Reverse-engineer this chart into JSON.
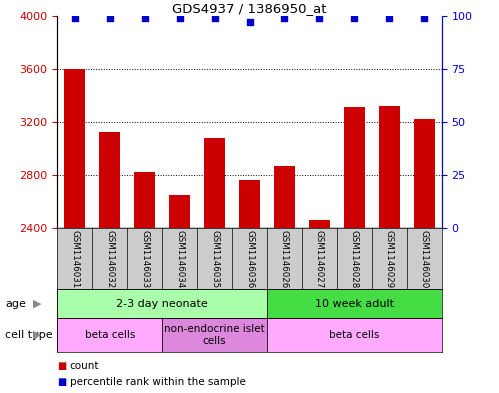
{
  "title": "GDS4937 / 1386950_at",
  "samples": [
    "GSM1146031",
    "GSM1146032",
    "GSM1146033",
    "GSM1146034",
    "GSM1146035",
    "GSM1146036",
    "GSM1146026",
    "GSM1146027",
    "GSM1146028",
    "GSM1146029",
    "GSM1146030"
  ],
  "counts": [
    3600,
    3120,
    2820,
    2650,
    3080,
    2760,
    2870,
    2460,
    3310,
    3320,
    3220
  ],
  "percentiles": [
    99,
    99,
    99,
    99,
    99,
    97,
    99,
    99,
    99,
    99,
    99
  ],
  "ylim_left": [
    2400,
    4000
  ],
  "ylim_right": [
    0,
    100
  ],
  "yticks_left": [
    2400,
    2800,
    3200,
    3600,
    4000
  ],
  "yticks_right": [
    0,
    25,
    50,
    75,
    100
  ],
  "bar_color": "#cc0000",
  "dot_color": "#0000cc",
  "bar_width": 0.6,
  "age_groups": [
    {
      "label": "2-3 day neonate",
      "start": 0,
      "end": 6,
      "color": "#aaffaa"
    },
    {
      "label": "10 week adult",
      "start": 6,
      "end": 11,
      "color": "#44dd44"
    }
  ],
  "cell_type_groups": [
    {
      "label": "beta cells",
      "start": 0,
      "end": 3,
      "color": "#ffaaff"
    },
    {
      "label": "non-endocrine islet\ncells",
      "start": 3,
      "end": 6,
      "color": "#dd88dd"
    },
    {
      "label": "beta cells",
      "start": 6,
      "end": 11,
      "color": "#ffaaff"
    }
  ],
  "age_label": "age",
  "cell_type_label": "cell type",
  "legend_count_label": "count",
  "legend_pct_label": "percentile rank within the sample",
  "grid_color": "#000000",
  "tick_color_left": "#cc0000",
  "tick_color_right": "#0000cc",
  "bg_color": "#ffffff",
  "sample_bg": "#cccccc"
}
